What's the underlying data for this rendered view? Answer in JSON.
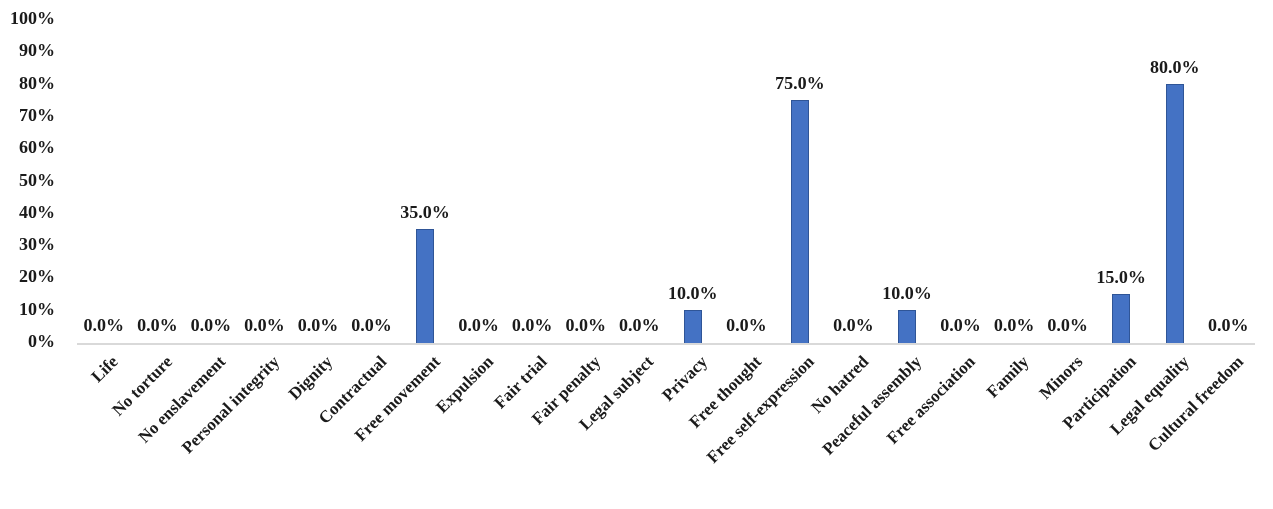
{
  "chart_data": {
    "type": "bar",
    "title": "",
    "xlabel": "",
    "ylabel": "",
    "categories": [
      "Life",
      "No torture",
      "No enslavement",
      "Personal integrity",
      "Dignity",
      "Contractual",
      "Free movement",
      "Expulsion",
      "Fair trial",
      "Fair penalty",
      "Legal subject",
      "Privacy",
      "Free thought",
      "Free self-expression",
      "No hatred",
      "Peaceful assembly",
      "Free association",
      "Family",
      "Minors",
      "Participation",
      "Legal equality",
      "Cultural freedom"
    ],
    "values": [
      0.0,
      0.0,
      0.0,
      0.0,
      0.0,
      0.0,
      35.0,
      0.0,
      0.0,
      0.0,
      0.0,
      10.0,
      0.0,
      75.0,
      0.0,
      10.0,
      0.0,
      0.0,
      0.0,
      15.0,
      80.0,
      0.0
    ],
    "value_labels": [
      "0.0%",
      "0.0%",
      "0.0%",
      "0.0%",
      "0.0%",
      "0.0%",
      "35.0%",
      "0.0%",
      "0.0%",
      "0.0%",
      "0.0%",
      "10.0%",
      "0.0%",
      "75.0%",
      "0.0%",
      "10.0%",
      "0.0%",
      "0.0%",
      "0.0%",
      "15.0%",
      "80.0%",
      "0.0%"
    ],
    "y_ticks": [
      "0%",
      "10%",
      "20%",
      "30%",
      "40%",
      "50%",
      "60%",
      "70%",
      "80%",
      "90%",
      "100%"
    ],
    "ylim": [
      0,
      100
    ],
    "layout": {
      "grid": false,
      "legend": false,
      "bar_color": "#4472c4",
      "bar_border_color": "#2f5597",
      "axis_line_color": "#d9d9d9",
      "x_label_rotation_deg": -45,
      "value_label_format": "one-decimal-percent"
    }
  }
}
